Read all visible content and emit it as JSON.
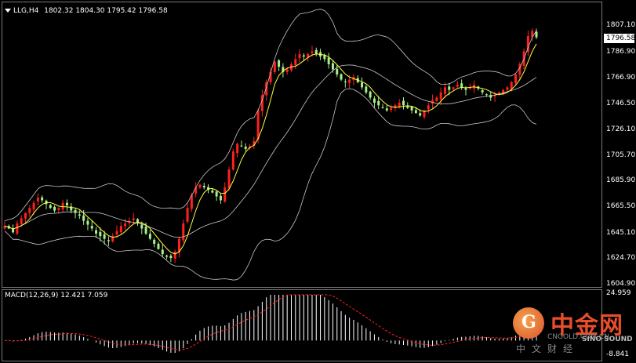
{
  "chart_header": {
    "symbol_timeframe": "LLG,H4",
    "ohlc": "1802.32 1804.30 1795.42 1796.58"
  },
  "price_axis": {
    "ticks": [
      "1807.10",
      "1786.90",
      "1766.90",
      "1746.50",
      "1726.10",
      "1705.70",
      "1685.90",
      "1665.50",
      "1645.10",
      "1624.70",
      "1604.90"
    ],
    "current_price": "1796.58"
  },
  "macd": {
    "label": "MACD(12,26,9) 12.421 7.059",
    "top_tick": "24.959",
    "bottom_tick": "-8.841"
  },
  "watermark": {
    "logo_glyph": "G",
    "brand": "中金网",
    "site": "CNGOLD.COM.CN",
    "sub": "中文财经",
    "sino": "SINO SOUND"
  },
  "colors": {
    "background": "#000000",
    "bull_candle": "#ff2020",
    "bear_candle": "#a8f08a",
    "bands": "#c8c8c8",
    "ma": "#ffff40",
    "macd_signal": "#ff2020",
    "macd_hist": "#ffffff"
  },
  "chart_data": {
    "type": "candlestick",
    "symbol": "LLG",
    "timeframe": "H4",
    "ylim": [
      1604.9,
      1807.1
    ],
    "closes": [
      1650,
      1648,
      1645,
      1652,
      1656,
      1660,
      1664,
      1668,
      1672,
      1670,
      1667,
      1664,
      1662,
      1664,
      1668,
      1666,
      1662,
      1660,
      1658,
      1654,
      1651,
      1648,
      1644,
      1642,
      1640,
      1638,
      1642,
      1646,
      1650,
      1652,
      1654,
      1656,
      1652,
      1648,
      1644,
      1640,
      1636,
      1632,
      1628,
      1626,
      1625,
      1630,
      1640,
      1652,
      1664,
      1674,
      1680,
      1682,
      1680,
      1678,
      1676,
      1673,
      1670,
      1680,
      1694,
      1708,
      1714,
      1712,
      1710,
      1712,
      1716,
      1740,
      1752,
      1762,
      1770,
      1778,
      1774,
      1770,
      1772,
      1776,
      1780,
      1784,
      1782,
      1784,
      1786,
      1784,
      1782,
      1780,
      1776,
      1772,
      1768,
      1764,
      1762,
      1764,
      1766,
      1762,
      1758,
      1754,
      1750,
      1746,
      1744,
      1742,
      1740,
      1742,
      1744,
      1746,
      1744,
      1742,
      1740,
      1738,
      1736,
      1740,
      1744,
      1748,
      1750,
      1754,
      1758,
      1756,
      1758,
      1760,
      1758,
      1756,
      1758,
      1760,
      1757,
      1754,
      1752,
      1750,
      1752,
      1754,
      1756,
      1758,
      1762,
      1768,
      1776,
      1786,
      1798,
      1802,
      1797
    ],
    "macd_hist_range": [
      -8.841,
      24.959
    ]
  }
}
